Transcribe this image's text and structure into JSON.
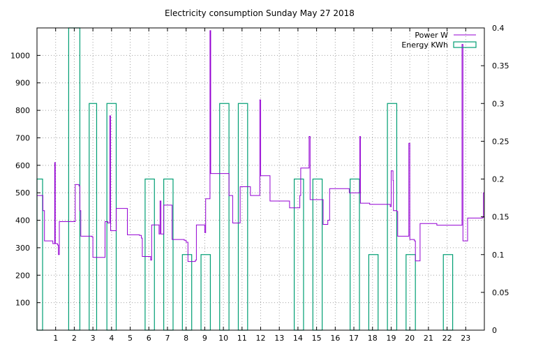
{
  "chart_data": {
    "type": "line",
    "title": "Electricity consumption Sunday May 27 2018",
    "xlabel": "",
    "ylabel": "",
    "y2label": "",
    "xlim": [
      0,
      24
    ],
    "ylim": [
      0,
      1100
    ],
    "y2lim": [
      0,
      0.4
    ],
    "x_ticks": [
      1,
      2,
      3,
      4,
      5,
      6,
      7,
      8,
      9,
      10,
      11,
      12,
      13,
      14,
      15,
      16,
      17,
      18,
      19,
      20,
      21,
      22,
      23
    ],
    "y_ticks": [
      100,
      200,
      300,
      400,
      500,
      600,
      700,
      800,
      900,
      1000
    ],
    "y2_ticks": [
      "0",
      "0.05",
      "0.1",
      "0.15",
      "0.2",
      "0.25",
      "0.3",
      "0.35",
      "0.4"
    ],
    "grid": true,
    "legend_position": "top-right",
    "series": [
      {
        "name": "Power W",
        "axis": "y1",
        "style": "steps",
        "color": "#9400d3",
        "points": [
          [
            0.0,
            490
          ],
          [
            0.3,
            490
          ],
          [
            0.32,
            435
          ],
          [
            0.4,
            325
          ],
          [
            0.8,
            325
          ],
          [
            0.85,
            315
          ],
          [
            0.95,
            610
          ],
          [
            0.98,
            315
          ],
          [
            1.1,
            310
          ],
          [
            1.15,
            275
          ],
          [
            1.2,
            395
          ],
          [
            1.5,
            395
          ],
          [
            2.0,
            395
          ],
          [
            2.05,
            530
          ],
          [
            2.25,
            525
          ],
          [
            2.3,
            435
          ],
          [
            2.35,
            342
          ],
          [
            2.8,
            342
          ],
          [
            2.95,
            340
          ],
          [
            3.0,
            265
          ],
          [
            3.3,
            265
          ],
          [
            3.6,
            265
          ],
          [
            3.65,
            395
          ],
          [
            3.8,
            390
          ],
          [
            3.9,
            780
          ],
          [
            3.95,
            362
          ],
          [
            4.2,
            362
          ],
          [
            4.25,
            443
          ],
          [
            4.8,
            443
          ],
          [
            4.85,
            347
          ],
          [
            5.5,
            345
          ],
          [
            5.6,
            335
          ],
          [
            5.65,
            268
          ],
          [
            6.0,
            268
          ],
          [
            6.1,
            255
          ],
          [
            6.15,
            383
          ],
          [
            6.5,
            383
          ],
          [
            6.55,
            350
          ],
          [
            6.6,
            470
          ],
          [
            6.65,
            350
          ],
          [
            6.8,
            455
          ],
          [
            7.2,
            455
          ],
          [
            7.25,
            330
          ],
          [
            7.9,
            327
          ],
          [
            8.0,
            320
          ],
          [
            8.1,
            250
          ],
          [
            8.5,
            255
          ],
          [
            8.55,
            383
          ],
          [
            8.95,
            383
          ],
          [
            9.0,
            355
          ],
          [
            9.05,
            478
          ],
          [
            9.2,
            478
          ],
          [
            9.28,
            1090
          ],
          [
            9.32,
            570
          ],
          [
            10.25,
            570
          ],
          [
            10.3,
            490
          ],
          [
            10.5,
            390
          ],
          [
            10.85,
            390
          ],
          [
            10.9,
            522
          ],
          [
            11.4,
            522
          ],
          [
            11.45,
            490
          ],
          [
            11.9,
            490
          ],
          [
            11.95,
            838
          ],
          [
            12.0,
            562
          ],
          [
            12.45,
            562
          ],
          [
            12.5,
            470
          ],
          [
            13.5,
            470
          ],
          [
            13.55,
            445
          ],
          [
            14.05,
            445
          ],
          [
            14.1,
            490
          ],
          [
            14.15,
            590
          ],
          [
            14.5,
            590
          ],
          [
            14.6,
            705
          ],
          [
            14.65,
            475
          ],
          [
            15.3,
            475
          ],
          [
            15.35,
            385
          ],
          [
            15.55,
            385
          ],
          [
            15.6,
            400
          ],
          [
            15.7,
            515
          ],
          [
            16.7,
            515
          ],
          [
            16.75,
            500
          ],
          [
            17.3,
            500
          ],
          [
            17.32,
            705
          ],
          [
            17.35,
            462
          ],
          [
            17.8,
            462
          ],
          [
            17.85,
            458
          ],
          [
            18.9,
            458
          ],
          [
            18.95,
            450
          ],
          [
            19.0,
            580
          ],
          [
            19.1,
            545
          ],
          [
            19.12,
            435
          ],
          [
            19.3,
            432
          ],
          [
            19.35,
            342
          ],
          [
            19.9,
            342
          ],
          [
            19.95,
            680
          ],
          [
            20.0,
            330
          ],
          [
            20.25,
            325
          ],
          [
            20.3,
            252
          ],
          [
            20.5,
            252
          ],
          [
            20.55,
            388
          ],
          [
            21.4,
            388
          ],
          [
            21.45,
            382
          ],
          [
            22.7,
            382
          ],
          [
            22.8,
            1040
          ],
          [
            22.85,
            325
          ],
          [
            23.05,
            325
          ],
          [
            23.1,
            408
          ],
          [
            23.9,
            410
          ],
          [
            23.95,
            500
          ],
          [
            24.0,
            500
          ]
        ]
      },
      {
        "name": "Energy KWh",
        "axis": "y2",
        "style": "boxes",
        "color": "#009e73",
        "bars": [
          [
            0.0,
            0.3,
            0.2
          ],
          [
            1.7,
            2.3,
            0.4
          ],
          [
            2.8,
            3.2,
            0.3
          ],
          [
            3.75,
            4.25,
            0.3
          ],
          [
            5.8,
            6.3,
            0.2
          ],
          [
            6.8,
            7.3,
            0.2
          ],
          [
            7.8,
            8.3,
            0.1
          ],
          [
            8.8,
            9.3,
            0.1
          ],
          [
            9.8,
            10.3,
            0.3
          ],
          [
            10.8,
            11.3,
            0.3
          ],
          [
            13.8,
            14.3,
            0.2
          ],
          [
            14.8,
            15.3,
            0.2
          ],
          [
            16.8,
            17.3,
            0.2
          ],
          [
            17.8,
            18.3,
            0.1
          ],
          [
            18.8,
            19.3,
            0.3
          ],
          [
            19.8,
            20.3,
            0.1
          ],
          [
            21.8,
            22.3,
            0.1
          ]
        ]
      }
    ]
  }
}
